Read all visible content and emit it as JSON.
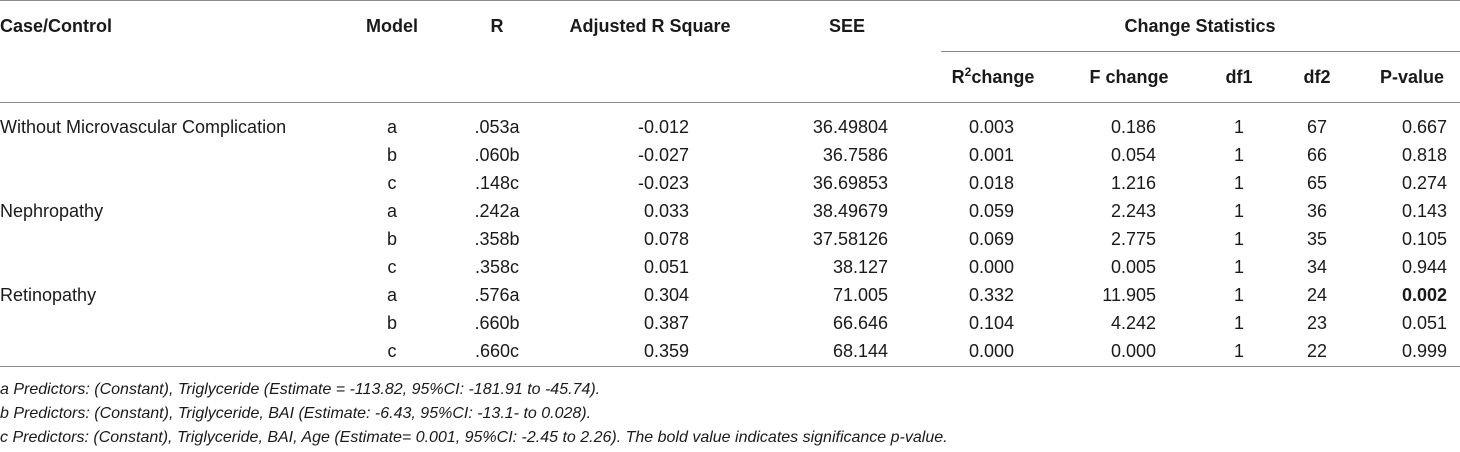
{
  "headers": {
    "case": "Case/Control",
    "model": "Model",
    "r": "R",
    "adj_r2": "Adjusted R Square",
    "see": "SEE",
    "change_stats": "Change Statistics",
    "r2change_base": "R",
    "r2change_sup": "2",
    "r2change_tail": "change",
    "f_change": "F change",
    "df1": "df1",
    "df2": "df2",
    "p_value": "P-value"
  },
  "groups": [
    {
      "label": "Without Microvascular Complication",
      "rows": [
        {
          "model": "a",
          "r": ".053a",
          "adj": "-0.012",
          "see": "36.49804",
          "r2c": "0.003",
          "fc": "0.186",
          "df1": "1",
          "df2": "67",
          "p": "0.667",
          "p_bold": false
        },
        {
          "model": "b",
          "r": ".060b",
          "adj": "-0.027",
          "see": "36.7586",
          "r2c": "0.001",
          "fc": "0.054",
          "df1": "1",
          "df2": "66",
          "p": "0.818",
          "p_bold": false
        },
        {
          "model": "c",
          "r": ".148c",
          "adj": "-0.023",
          "see": "36.69853",
          "r2c": "0.018",
          "fc": "1.216",
          "df1": "1",
          "df2": "65",
          "p": "0.274",
          "p_bold": false
        }
      ]
    },
    {
      "label": "Nephropathy",
      "rows": [
        {
          "model": "a",
          "r": ".242a",
          "adj": "0.033",
          "see": "38.49679",
          "r2c": "0.059",
          "fc": "2.243",
          "df1": "1",
          "df2": "36",
          "p": "0.143",
          "p_bold": false
        },
        {
          "model": "b",
          "r": ".358b",
          "adj": "0.078",
          "see": "37.58126",
          "r2c": "0.069",
          "fc": "2.775",
          "df1": "1",
          "df2": "35",
          "p": "0.105",
          "p_bold": false
        },
        {
          "model": "c",
          "r": ".358c",
          "adj": "0.051",
          "see": "38.127",
          "r2c": "0.000",
          "fc": "0.005",
          "df1": "1",
          "df2": "34",
          "p": "0.944",
          "p_bold": false
        }
      ]
    },
    {
      "label": "Retinopathy",
      "rows": [
        {
          "model": "a",
          "r": ".576a",
          "adj": "0.304",
          "see": "71.005",
          "r2c": "0.332",
          "fc": "11.905",
          "df1": "1",
          "df2": "24",
          "p": "0.002",
          "p_bold": true
        },
        {
          "model": "b",
          "r": ".660b",
          "adj": "0.387",
          "see": "66.646",
          "r2c": "0.104",
          "fc": "4.242",
          "df1": "1",
          "df2": "23",
          "p": "0.051",
          "p_bold": false
        },
        {
          "model": "c",
          "r": ".660c",
          "adj": "0.359",
          "see": "68.144",
          "r2c": "0.000",
          "fc": "0.000",
          "df1": "1",
          "df2": "22",
          "p": "0.999",
          "p_bold": false
        }
      ]
    }
  ],
  "footnotes": {
    "a": "a Predictors: (Constant), Triglyceride (Estimate = -113.82, 95%CI: -181.91 to -45.74).",
    "b": "b Predictors: (Constant), Triglyceride, BAI (Estimate: -6.43, 95%CI: -13.1- to 0.028).",
    "c": "c Predictors: (Constant), Triglyceride, BAI, Age (Estimate= 0.001, 95%CI: -2.45 to 2.26). The bold value indicates significance p-value."
  }
}
